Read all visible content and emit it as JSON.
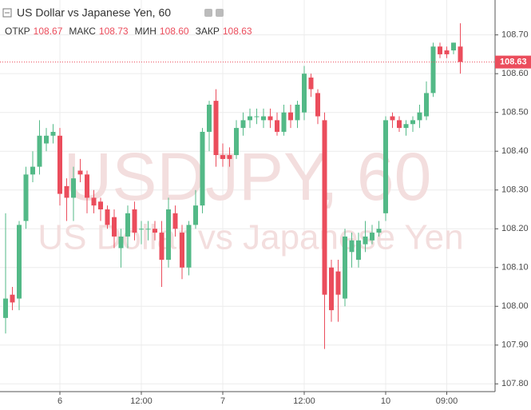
{
  "chart_data": {
    "type": "candlestick",
    "title": "US Dollar vs Japanese Yen, 60",
    "watermark": {
      "symbol": "USDJPY, 60",
      "description": "US Dollar vs Japanese Yen"
    },
    "ohlc_header": [
      {
        "label": "ОТКР",
        "value": "108.67"
      },
      {
        "label": "МАКС",
        "value": "108.73"
      },
      {
        "label": "МИН",
        "value": "108.60"
      },
      {
        "label": "ЗАКР",
        "value": "108.63"
      }
    ],
    "up_color": "#53b987",
    "down_color": "#eb4d5c",
    "grid": true,
    "categories": [
      null,
      null,
      null,
      null,
      null,
      null,
      null,
      null,
      "6",
      null,
      null,
      null,
      null,
      null,
      null,
      null,
      null,
      null,
      null,
      null,
      "12:00",
      null,
      null,
      null,
      null,
      null,
      null,
      null,
      null,
      null,
      null,
      null,
      "7",
      null,
      null,
      null,
      null,
      null,
      null,
      null,
      null,
      null,
      null,
      null,
      "12:00",
      null,
      null,
      null,
      null,
      null,
      null,
      null,
      null,
      null,
      null,
      null,
      "10",
      null,
      null,
      null,
      null,
      null,
      null,
      null,
      null,
      "09:00",
      null,
      null
    ],
    "open": [
      107.97,
      108.03,
      108.02,
      108.22,
      108.34,
      108.36,
      108.42,
      108.44,
      108.44,
      108.31,
      108.28,
      108.35,
      108.34,
      108.28,
      108.27,
      108.25,
      108.23,
      108.15,
      108.18,
      108.25,
      108.2,
      108.2,
      108.2,
      108.19,
      108.12,
      108.24,
      108.19,
      108.1,
      108.21,
      108.26,
      108.45,
      108.53,
      108.39,
      108.39,
      108.39,
      108.46,
      108.48,
      108.49,
      108.48,
      108.49,
      108.48,
      108.45,
      108.5,
      108.48,
      108.5,
      108.59,
      108.55,
      108.48,
      108.1,
      108.09,
      108.02,
      108.14,
      108.12,
      108.16,
      108.17,
      108.19,
      108.24,
      108.49,
      108.48,
      108.46,
      108.47,
      108.48,
      108.49,
      108.55,
      108.67,
      108.66,
      108.66,
      108.67
    ],
    "high": [
      108.24,
      108.05,
      108.22,
      108.36,
      108.4,
      108.48,
      108.46,
      108.47,
      108.46,
      108.33,
      108.36,
      108.38,
      108.35,
      108.3,
      108.28,
      108.26,
      108.25,
      108.2,
      108.26,
      108.27,
      108.22,
      108.22,
      108.22,
      108.22,
      108.28,
      108.26,
      108.21,
      108.22,
      108.3,
      108.46,
      108.53,
      108.56,
      108.42,
      108.41,
      108.48,
      108.5,
      108.51,
      108.51,
      108.51,
      108.51,
      108.5,
      108.52,
      108.52,
      108.53,
      108.62,
      108.6,
      108.56,
      108.5,
      108.12,
      108.12,
      108.2,
      108.19,
      108.19,
      108.22,
      108.21,
      108.22,
      108.49,
      108.5,
      108.49,
      108.48,
      108.49,
      108.52,
      108.58,
      108.68,
      108.68,
      108.67,
      108.68,
      108.73
    ],
    "low": [
      107.93,
      107.99,
      107.99,
      108.2,
      108.32,
      108.34,
      108.4,
      108.42,
      108.26,
      108.22,
      108.22,
      108.32,
      108.24,
      108.24,
      108.22,
      108.2,
      108.15,
      108.1,
      108.15,
      108.17,
      108.16,
      108.17,
      108.17,
      108.05,
      108.1,
      108.18,
      108.07,
      108.08,
      108.2,
      108.24,
      108.4,
      108.36,
      108.36,
      108.36,
      108.38,
      108.44,
      108.46,
      108.47,
      108.46,
      108.46,
      108.44,
      108.44,
      108.46,
      108.46,
      108.48,
      108.54,
      108.47,
      107.89,
      107.96,
      107.96,
      108.0,
      108.1,
      108.1,
      108.14,
      108.16,
      108.18,
      108.22,
      108.46,
      108.45,
      108.44,
      108.45,
      108.46,
      108.48,
      108.54,
      108.64,
      108.64,
      108.65,
      108.6
    ],
    "close": [
      108.02,
      108.01,
      108.21,
      108.34,
      108.36,
      108.44,
      108.44,
      108.45,
      108.29,
      108.28,
      108.33,
      108.34,
      108.28,
      108.26,
      108.25,
      108.21,
      108.18,
      108.18,
      108.24,
      108.19,
      108.2,
      108.2,
      108.19,
      108.12,
      108.25,
      108.2,
      108.1,
      108.21,
      108.26,
      108.45,
      108.52,
      108.39,
      108.38,
      108.38,
      108.46,
      108.48,
      108.49,
      108.49,
      108.49,
      108.48,
      108.45,
      108.5,
      108.48,
      108.52,
      108.6,
      108.56,
      108.49,
      108.03,
      107.99,
      108.03,
      108.18,
      108.17,
      108.17,
      108.18,
      108.19,
      108.2,
      108.48,
      108.48,
      108.46,
      108.47,
      108.48,
      108.5,
      108.55,
      108.67,
      108.65,
      108.65,
      108.68,
      108.63
    ],
    "ylim": [
      107.78,
      108.79
    ],
    "yticks": [
      {
        "value": 107.8,
        "label": "107.80"
      },
      {
        "value": 107.9,
        "label": "107.90"
      },
      {
        "value": 108,
        "label": "108.00"
      },
      {
        "value": 108.1,
        "label": "108.10"
      },
      {
        "value": 108.2,
        "label": "108.20"
      },
      {
        "value": 108.3,
        "label": "108.30"
      },
      {
        "value": 108.4,
        "label": "108.40"
      },
      {
        "value": 108.5,
        "label": "108.50"
      },
      {
        "value": 108.6,
        "label": "108.60"
      },
      {
        "value": 108.7,
        "label": "108.70"
      }
    ]
  }
}
